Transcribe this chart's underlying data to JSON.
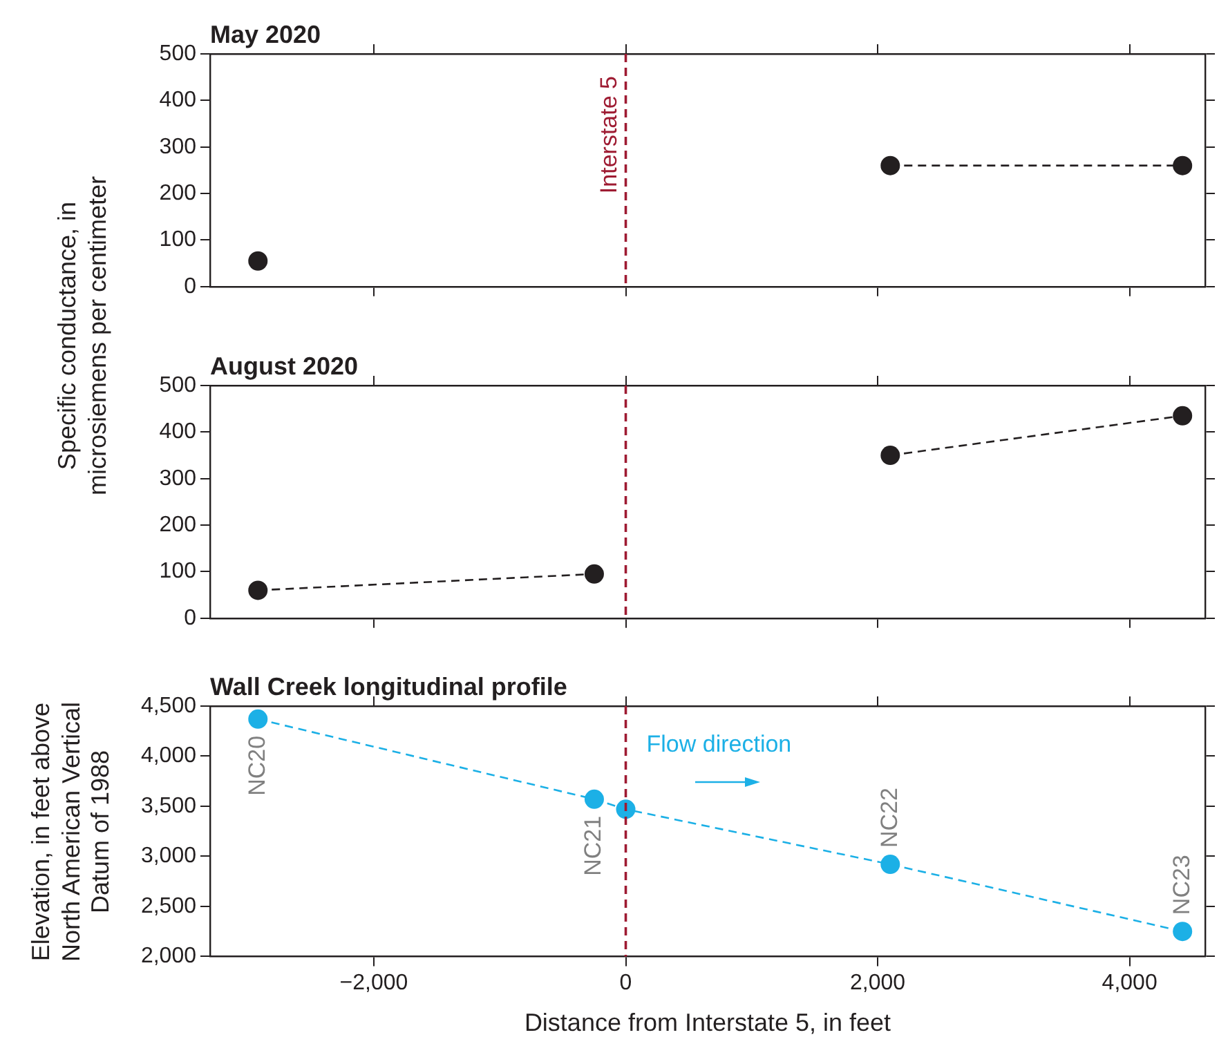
{
  "chart_data": [
    {
      "type": "line",
      "title": "May 2020",
      "ylabel": "Specific conductance, in microsiemens per centimeter",
      "marker": "circle",
      "line_style": "dashed",
      "tick_labels": "y",
      "xlim": [
        -3300,
        4600
      ],
      "xticks": [
        {
          "value": -2000,
          "label": null
        },
        {
          "value": 0,
          "label": null
        },
        {
          "value": 2000,
          "label": null
        },
        {
          "value": 4000,
          "label": null
        }
      ],
      "ylim": [
        0,
        500
      ],
      "yticks": [
        0,
        100,
        200,
        300,
        400,
        500
      ],
      "ref_lines": [
        {
          "axis": "x",
          "value": 0,
          "label": "Interstate 5",
          "color": "#9e1b32",
          "line_style": "dashed"
        }
      ],
      "series": [
        {
          "color": "#231f20",
          "x": [
            -2920
          ],
          "values": [
            55
          ]
        },
        {
          "color": "#231f20",
          "x": [
            2100,
            4420
          ],
          "values": [
            260,
            260
          ]
        }
      ]
    },
    {
      "type": "line",
      "title": "August 2020",
      "marker": "circle",
      "line_style": "dashed",
      "tick_labels": "y",
      "xlim": [
        -3300,
        4600
      ],
      "xticks": [
        {
          "value": -2000,
          "label": null
        },
        {
          "value": 0,
          "label": null
        },
        {
          "value": 2000,
          "label": null
        },
        {
          "value": 4000,
          "label": null
        }
      ],
      "ylim": [
        0,
        500
      ],
      "yticks": [
        0,
        100,
        200,
        300,
        400,
        500
      ],
      "ref_lines": [
        {
          "axis": "x",
          "value": 0,
          "color": "#9e1b32",
          "line_style": "dashed"
        }
      ],
      "series": [
        {
          "color": "#231f20",
          "x": [
            -2920,
            -250
          ],
          "values": [
            60,
            95
          ]
        },
        {
          "color": "#231f20",
          "x": [
            2100,
            4420
          ],
          "values": [
            350,
            435
          ]
        }
      ]
    },
    {
      "type": "line",
      "title": "Wall Creek longitudinal profile",
      "xlabel": "Distance from Interstate 5, in feet",
      "ylabel": "Elevation, in feet above North American Vertical Datum of 1988",
      "marker": "circle",
      "line_style": "dashed",
      "xlim": [
        -3300,
        4600
      ],
      "xticks": [
        {
          "value": -2000,
          "label": "−2,000"
        },
        {
          "value": 0,
          "label": "0"
        },
        {
          "value": 2000,
          "label": "2,000"
        },
        {
          "value": 4000,
          "label": "4,000"
        }
      ],
      "ylim": [
        2000,
        4500
      ],
      "yticks": [
        {
          "value": 2000,
          "label": "2,000"
        },
        {
          "value": 2500,
          "label": "2,500"
        },
        {
          "value": 3000,
          "label": "3,000"
        },
        {
          "value": 3500,
          "label": "3,500"
        },
        {
          "value": 4000,
          "label": "4,000"
        },
        {
          "value": 4500,
          "label": "4,500"
        }
      ],
      "ref_lines": [
        {
          "axis": "x",
          "value": 0,
          "color": "#9e1b32",
          "line_style": "dashed"
        }
      ],
      "annotations": [
        "Flow direction",
        {
          "text": "NC20",
          "x": -2920,
          "y": 4370
        },
        {
          "text": "NC21",
          "x": -250,
          "y": 3570
        },
        {
          "text": "NC22",
          "x": 2100,
          "y": 2920
        },
        {
          "text": "NC23",
          "x": 4420,
          "y": 2250
        }
      ],
      "series": [
        {
          "color": "#1cb0e6",
          "x": [
            -2920,
            -250,
            0,
            2100,
            4420
          ],
          "values": [
            4370,
            3570,
            3470,
            2920,
            2250
          ]
        }
      ]
    }
  ]
}
